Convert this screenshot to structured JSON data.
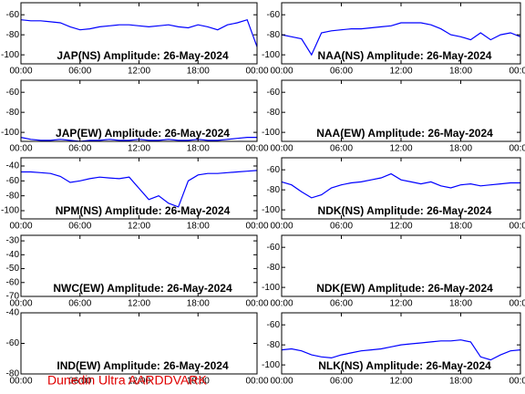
{
  "chart_data": [
    {
      "type": "line",
      "title": "JAP(NS) Amplitude: 26-May-2024",
      "xlim": [
        0,
        24
      ],
      "xticks": [
        {
          "value": 0,
          "label": "00:00"
        },
        {
          "value": 6,
          "label": "06:00"
        },
        {
          "value": 12,
          "label": "12:00"
        },
        {
          "value": 18,
          "label": "18:00"
        },
        {
          "value": 24,
          "label": "00:00"
        }
      ],
      "ylim": [
        -109,
        -48
      ],
      "yticks": [
        -60,
        -80,
        -100
      ],
      "color": "#0000ff",
      "x": [
        0,
        1,
        2,
        3,
        4,
        5,
        6,
        7,
        8,
        9,
        10,
        11,
        12,
        13,
        14,
        15,
        16,
        17,
        18,
        19,
        20,
        21,
        22,
        23,
        24
      ],
      "values": [
        -65,
        -66,
        -66,
        -67,
        -68,
        -72,
        -75,
        -74,
        -72,
        -71,
        -70,
        -70,
        -71,
        -72,
        -71,
        -70,
        -72,
        -73,
        -70,
        -72,
        -75,
        -70,
        -68,
        -65,
        -92
      ]
    },
    {
      "type": "line",
      "title": "NAA(NS) Amplitude: 26-May-2024",
      "xlim": [
        0,
        24
      ],
      "xticks": [
        {
          "value": 0,
          "label": "00:00"
        },
        {
          "value": 6,
          "label": "06:00"
        },
        {
          "value": 12,
          "label": "12:00"
        },
        {
          "value": 18,
          "label": "18:00"
        },
        {
          "value": 24,
          "label": "00:00"
        }
      ],
      "ylim": [
        -109,
        -48
      ],
      "yticks": [
        -60,
        -80,
        -100
      ],
      "color": "#0000ff",
      "x": [
        0,
        1,
        2,
        3,
        4,
        5,
        6,
        7,
        8,
        9,
        10,
        11,
        12,
        13,
        14,
        15,
        16,
        17,
        18,
        19,
        20,
        21,
        22,
        23,
        24
      ],
      "values": [
        -80,
        -82,
        -84,
        -100,
        -78,
        -76,
        -75,
        -74,
        -74,
        -73,
        -72,
        -71,
        -68,
        -68,
        -68,
        -70,
        -74,
        -80,
        -82,
        -85,
        -78,
        -85,
        -80,
        -78,
        -82
      ]
    },
    {
      "type": "line",
      "title": "JAP(EW) Amplitude: 26-May-2024",
      "xlim": [
        0,
        24
      ],
      "xticks": [
        {
          "value": 0,
          "label": "00:00"
        },
        {
          "value": 6,
          "label": "06:00"
        },
        {
          "value": 12,
          "label": "12:00"
        },
        {
          "value": 18,
          "label": "18:00"
        },
        {
          "value": 24,
          "label": "00:00"
        }
      ],
      "ylim": [
        -109,
        -48
      ],
      "yticks": [
        -60,
        -80,
        -100
      ],
      "color": "#0000ff",
      "x": [
        0,
        1,
        2,
        3,
        4,
        5,
        6,
        7,
        8,
        9,
        10,
        11,
        12,
        13,
        14,
        15,
        16,
        17,
        18,
        19,
        20,
        21,
        22,
        23,
        24
      ],
      "values": [
        -105,
        -107,
        -108,
        -108,
        -107,
        -108,
        -109,
        -108,
        -108,
        -107,
        -108,
        -108,
        -107,
        -108,
        -108,
        -107,
        -108,
        -108,
        -107,
        -108,
        -108,
        -107,
        -106,
        -105,
        -105
      ]
    },
    {
      "type": "line",
      "title": "NAA(EW) Amplitude: 26-May-2024",
      "xlim": [
        0,
        24
      ],
      "xticks": [
        {
          "value": 0,
          "label": "00:00"
        },
        {
          "value": 6,
          "label": "06:00"
        },
        {
          "value": 12,
          "label": "12:00"
        },
        {
          "value": 18,
          "label": "18:00"
        },
        {
          "value": 24,
          "label": "00:00"
        }
      ],
      "ylim": [
        -109,
        -48
      ],
      "yticks": [
        -60,
        -80,
        -100
      ]
    },
    {
      "type": "line",
      "title": "NPM(NS) Amplitude: 26-May-2024",
      "xlim": [
        0,
        24
      ],
      "xticks": [
        {
          "value": 0,
          "label": "00:00"
        },
        {
          "value": 6,
          "label": "06:00"
        },
        {
          "value": 12,
          "label": "12:00"
        },
        {
          "value": 18,
          "label": "18:00"
        },
        {
          "value": 24,
          "label": "00:00"
        }
      ],
      "ylim": [
        -111,
        -29
      ],
      "yticks": [
        -40,
        -60,
        -80,
        -100
      ],
      "color": "#0000ff",
      "x": [
        0,
        1,
        2,
        3,
        4,
        5,
        6,
        7,
        8,
        9,
        10,
        11,
        12,
        13,
        14,
        15,
        16,
        17,
        18,
        19,
        20,
        21,
        22,
        23,
        24
      ],
      "values": [
        -48,
        -48,
        -49,
        -50,
        -54,
        -62,
        -60,
        -57,
        -55,
        -56,
        -57,
        -55,
        -70,
        -85,
        -80,
        -90,
        -95,
        -60,
        -52,
        -50,
        -50,
        -49,
        -48,
        -47,
        -46
      ]
    },
    {
      "type": "line",
      "title": "NDK(NS) Amplitude: 26-May-2024",
      "xlim": [
        0,
        24
      ],
      "xticks": [
        {
          "value": 0,
          "label": "00:00"
        },
        {
          "value": 6,
          "label": "06:00"
        },
        {
          "value": 12,
          "label": "12:00"
        },
        {
          "value": 18,
          "label": "18:00"
        },
        {
          "value": 24,
          "label": "00:00"
        }
      ],
      "ylim": [
        -109,
        -48
      ],
      "yticks": [
        -60,
        -80,
        -100
      ],
      "color": "#0000ff",
      "x": [
        0,
        1,
        2,
        3,
        4,
        5,
        6,
        7,
        8,
        9,
        10,
        11,
        12,
        13,
        14,
        15,
        16,
        17,
        18,
        19,
        20,
        21,
        22,
        23,
        24
      ],
      "values": [
        -72,
        -75,
        -82,
        -88,
        -85,
        -78,
        -75,
        -73,
        -72,
        -70,
        -68,
        -64,
        -70,
        -72,
        -74,
        -72,
        -76,
        -78,
        -75,
        -74,
        -76,
        -75,
        -74,
        -73,
        -73
      ]
    },
    {
      "type": "line",
      "title": "NWC(EW) Amplitude: 26-May-2024",
      "xlim": [
        0,
        24
      ],
      "xticks": [
        {
          "value": 0,
          "label": "00:00"
        },
        {
          "value": 6,
          "label": "06:00"
        },
        {
          "value": 12,
          "label": "12:00"
        },
        {
          "value": 18,
          "label": "18:00"
        },
        {
          "value": 24,
          "label": "00:00"
        }
      ],
      "ylim": [
        -70,
        -26
      ],
      "yticks": [
        -30,
        -40,
        -50,
        -60,
        -70
      ]
    },
    {
      "type": "line",
      "title": "NDK(EW) Amplitude: 26-May-2024",
      "xlim": [
        0,
        24
      ],
      "xticks": [
        {
          "value": 0,
          "label": "00:00"
        },
        {
          "value": 6,
          "label": "06:00"
        },
        {
          "value": 12,
          "label": "12:00"
        },
        {
          "value": 18,
          "label": "18:00"
        },
        {
          "value": 24,
          "label": "00:00"
        }
      ],
      "ylim": [
        -109,
        -48
      ],
      "yticks": [
        -60,
        -80,
        -100
      ]
    },
    {
      "type": "line",
      "title": "IND(EW) Amplitude: 26-May-2024",
      "xlim": [
        0,
        24
      ],
      "xticks": [
        {
          "value": 0,
          "label": "00:00"
        },
        {
          "value": 6,
          "label": "06:00"
        },
        {
          "value": 12,
          "label": "12:00"
        },
        {
          "value": 18,
          "label": "18:00"
        },
        {
          "value": 24,
          "label": "00:00"
        }
      ],
      "ylim": [
        -80,
        -40
      ],
      "yticks": [
        -40,
        -60,
        -80
      ]
    },
    {
      "type": "line",
      "title": "NLK(NS) Amplitude: 26-May-2024",
      "xlim": [
        0,
        24
      ],
      "xticks": [
        {
          "value": 0,
          "label": "00:00"
        },
        {
          "value": 6,
          "label": "06:00"
        },
        {
          "value": 12,
          "label": "12:00"
        },
        {
          "value": 18,
          "label": "18:00"
        },
        {
          "value": 24,
          "label": "00:00"
        }
      ],
      "ylim": [
        -109,
        -48
      ],
      "yticks": [
        -60,
        -80,
        -100
      ],
      "color": "#0000ff",
      "x": [
        0,
        1,
        2,
        3,
        4,
        5,
        6,
        7,
        8,
        9,
        10,
        11,
        12,
        13,
        14,
        15,
        16,
        17,
        18,
        19,
        20,
        21,
        22,
        23,
        24
      ],
      "values": [
        -85,
        -84,
        -86,
        -90,
        -92,
        -93,
        -90,
        -88,
        -86,
        -85,
        -84,
        -82,
        -80,
        -79,
        -78,
        -77,
        -76,
        -76,
        -75,
        -77,
        -92,
        -95,
        -90,
        -86,
        -85
      ]
    }
  ],
  "footer": "Dunedin Ultra AARDDVARK"
}
